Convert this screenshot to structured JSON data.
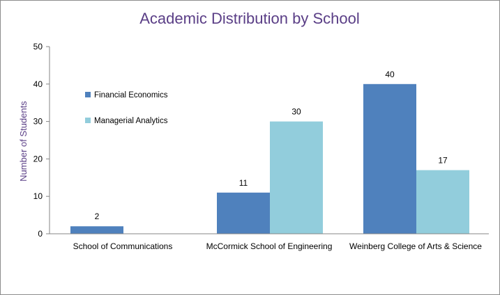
{
  "colors": {
    "title": "#5a3e86",
    "axis_label": "#5a3e86",
    "axis_line": "#868686",
    "series_0": "#4f81bd",
    "series_1": "#92cddc"
  },
  "chart_data": {
    "type": "bar",
    "title": "Academic Distribution by School",
    "xlabel": "",
    "ylabel": "Number of Students",
    "ylim": [
      0,
      50
    ],
    "yticks": [
      0,
      10,
      20,
      30,
      40,
      50
    ],
    "grid": false,
    "legend_position": "left",
    "categories": [
      "School of Communications",
      "McCormick School of Engineering",
      "Weinberg College of Arts & Science"
    ],
    "series": [
      {
        "name": "Financial Economics",
        "values": [
          2,
          11,
          40
        ]
      },
      {
        "name": "Managerial Analytics",
        "values": [
          null,
          30,
          17
        ]
      }
    ]
  }
}
